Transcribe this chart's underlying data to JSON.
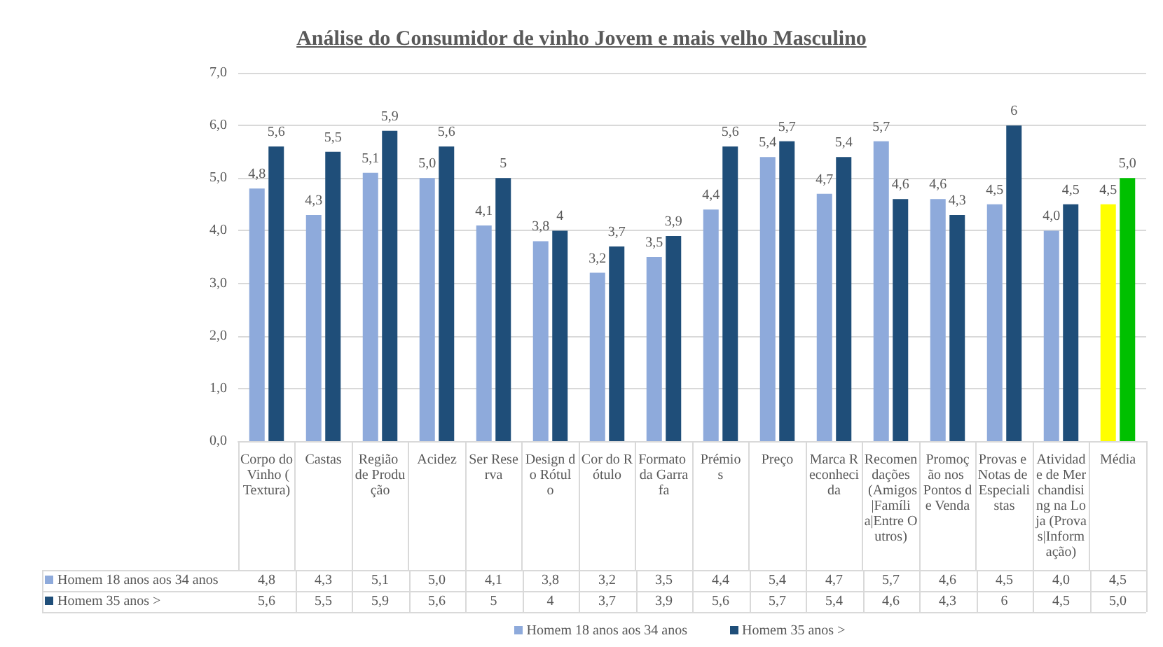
{
  "chart_data": {
    "type": "bar",
    "title": "Análise do Consumidor de vinho Jovem e mais velho Masculino",
    "categories": [
      "Corpo do Vinho (Textura)",
      "Castas",
      "Região de Produção",
      "Acidez",
      "Ser Reserva",
      "Design do Rótulo",
      "Cor do Rótulo",
      "Formato da Garrafa",
      "Prémios",
      "Preço",
      "Marca Reconhecida",
      "Recomendações (Amigos|Família|Entre Outros)",
      "Promoção nos Pontos de Venda",
      "Provas e Notas de Especialistas",
      "Atividade de Merchandising na Loja (Provas|Informação)",
      "Média"
    ],
    "series": [
      {
        "name": "Homem 18 anos aos 34 anos",
        "color": "#8eaadb",
        "colors": [
          "#8eaadb",
          "#8eaadb",
          "#8eaadb",
          "#8eaadb",
          "#8eaadb",
          "#8eaadb",
          "#8eaadb",
          "#8eaadb",
          "#8eaadb",
          "#8eaadb",
          "#8eaadb",
          "#8eaadb",
          "#8eaadb",
          "#8eaadb",
          "#8eaadb",
          "#ffff00"
        ],
        "values": [
          4.8,
          4.3,
          5.1,
          5.0,
          4.1,
          3.8,
          3.2,
          3.5,
          4.4,
          5.4,
          4.7,
          5.7,
          4.6,
          4.5,
          4.0,
          4.5
        ],
        "value_labels": [
          "4,8",
          "4,3",
          "5,1",
          "5,0",
          "4,1",
          "3,8",
          "3,2",
          "3,5",
          "4,4",
          "5,4",
          "4,7",
          "5,7",
          "4,6",
          "4,5",
          "4,0",
          "4,5"
        ]
      },
      {
        "name": "Homem 35 anos >",
        "color": "#1f4e79",
        "colors": [
          "#1f4e79",
          "#1f4e79",
          "#1f4e79",
          "#1f4e79",
          "#1f4e79",
          "#1f4e79",
          "#1f4e79",
          "#1f4e79",
          "#1f4e79",
          "#1f4e79",
          "#1f4e79",
          "#1f4e79",
          "#1f4e79",
          "#1f4e79",
          "#1f4e79",
          "#00c000"
        ],
        "values": [
          5.6,
          5.5,
          5.9,
          5.6,
          5,
          4,
          3.7,
          3.9,
          5.6,
          5.7,
          5.4,
          4.6,
          4.3,
          6,
          4.5,
          5.0
        ],
        "value_labels": [
          "5,6",
          "5,5",
          "5,9",
          "5,6",
          "5",
          "4",
          "3,7",
          "3,9",
          "5,6",
          "5,7",
          "5,4",
          "4,6",
          "4,3",
          "6",
          "4,5",
          "5,0"
        ]
      }
    ],
    "ylim": [
      0,
      7
    ],
    "yticks": [
      {
        "value": 0,
        "label": "0,0"
      },
      {
        "value": 1,
        "label": "1,0"
      },
      {
        "value": 2,
        "label": "2,0"
      },
      {
        "value": 3,
        "label": "3,0"
      },
      {
        "value": 4,
        "label": "4,0"
      },
      {
        "value": 5,
        "label": "5,0"
      },
      {
        "value": 6,
        "label": "6,0"
      },
      {
        "value": 7,
        "label": "7,0"
      }
    ],
    "grid": "y",
    "legend": "bottom"
  }
}
